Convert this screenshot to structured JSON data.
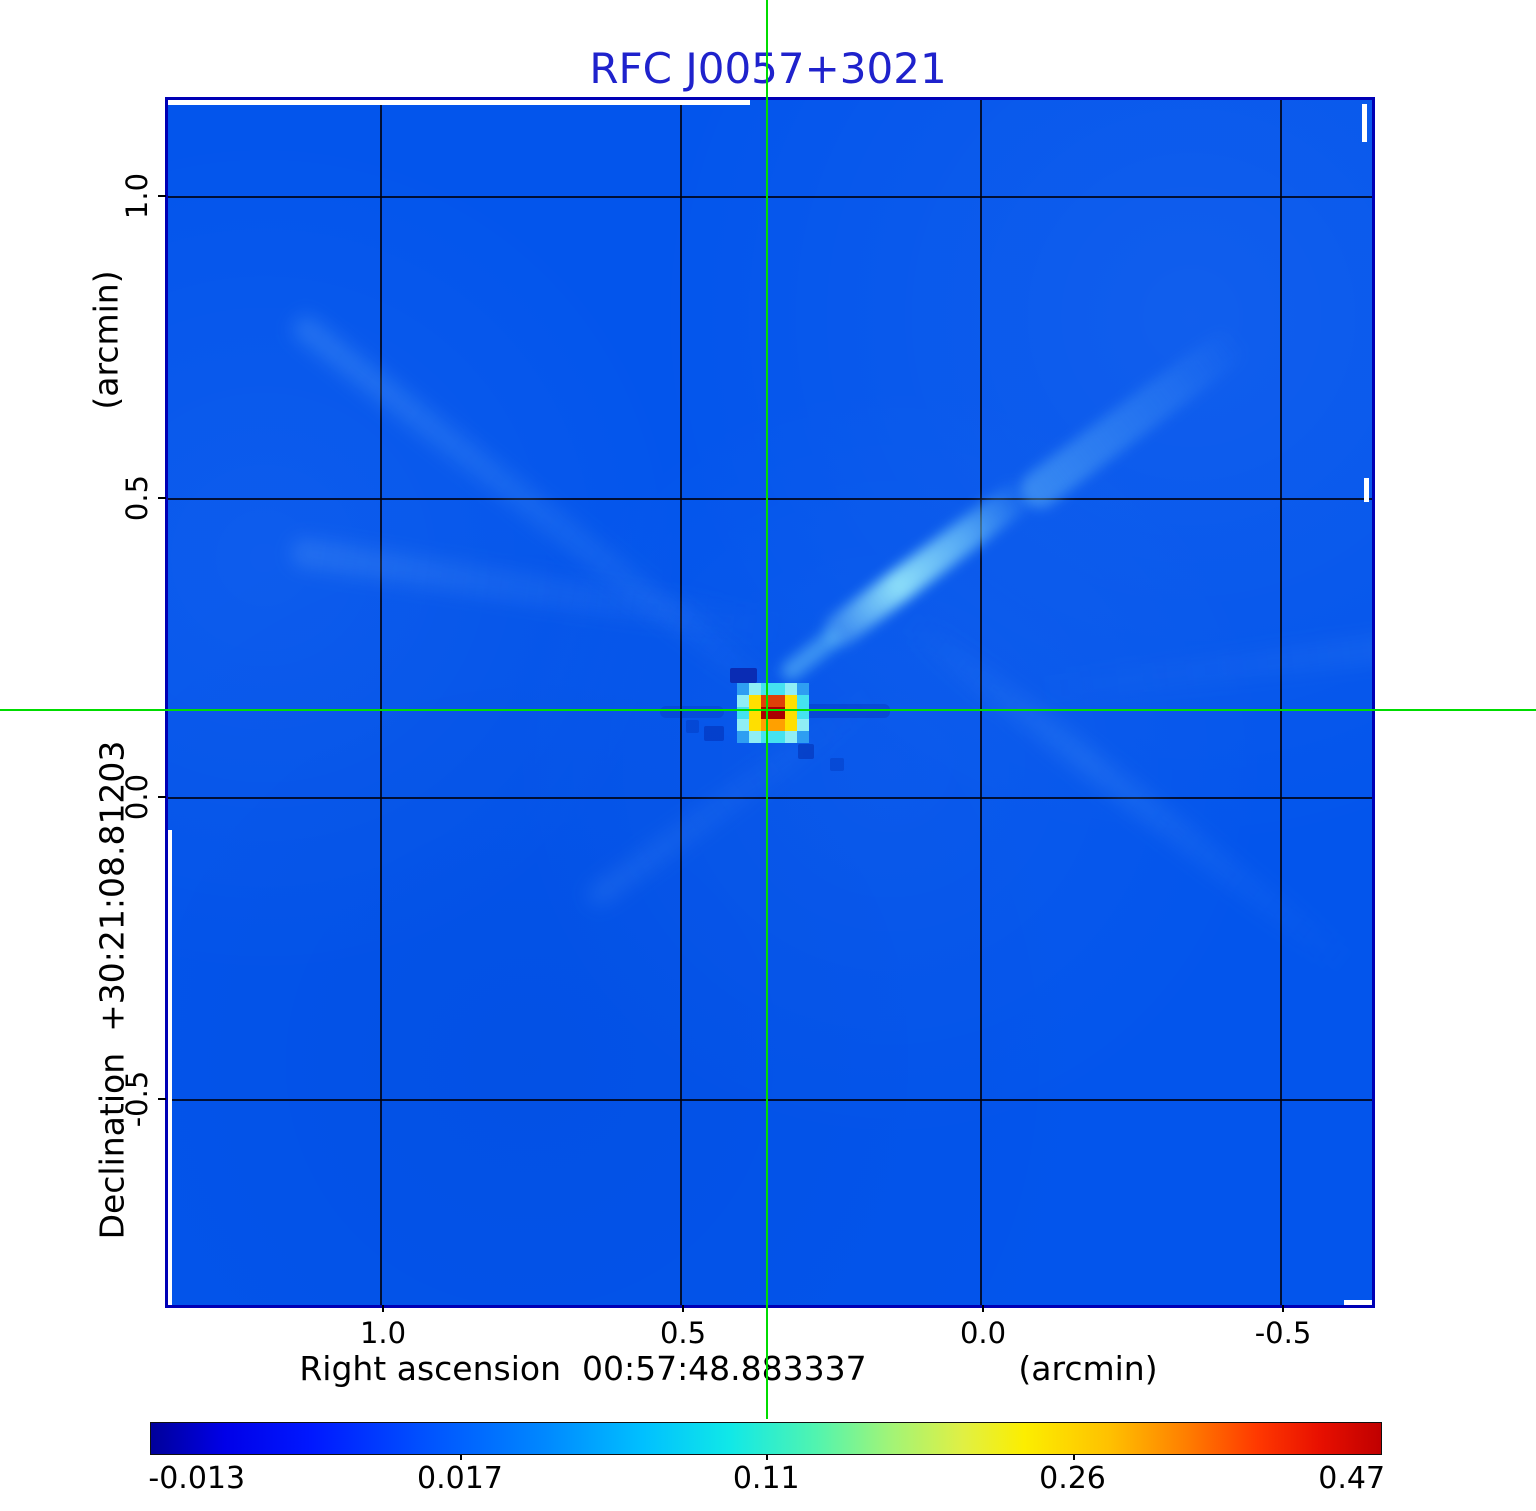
{
  "title": {
    "text": "RFC J0057+3021",
    "color": "#1f22cc"
  },
  "plot": {
    "x_axis": {
      "label": "Right ascension  00:57:48.883337",
      "unit_label": "(arcmin)",
      "ticks": [
        "1.0",
        "0.5",
        "0.0",
        "-0.5"
      ]
    },
    "y_axis": {
      "label": "Declination  +30:21:08.81203",
      "unit_label": "(arcmin)",
      "ticks": [
        "1.0",
        "0.5",
        "0.0",
        "-0.5"
      ]
    },
    "frame_color": "#0000b5",
    "field_color": "#0355ec",
    "grid_color": "#000000",
    "crosshair_color": "#00dc00"
  },
  "colorbar": {
    "tick_labels": [
      "-0.013",
      "0.017",
      "0.11",
      "0.26",
      "0.47"
    ],
    "gradient_stops": [
      "#00009a 0%",
      "#0000e8 6%",
      "#0018ff 13%",
      "#0050ff 22%",
      "#0088ff 32%",
      "#00c0ff 40%",
      "#10e8e8 47%",
      "#50f4b0 54%",
      "#a0f478 60%",
      "#e0f044 66%",
      "#fcee00 71%",
      "#ffc000 78%",
      "#ff8000 84%",
      "#ff3800 90%",
      "#e81000 95%",
      "#c00000 100%"
    ]
  },
  "source_pixels": {
    "palette": {
      "D": "#aa0000",
      "R": "#e04008",
      "O": "#ffa000",
      "Y": "#ffdf00",
      "C": "#45e2f0",
      "c": "#8feef5",
      "l": "#2e9ef2",
      ".": null
    },
    "matrix": [
      [
        "l",
        "c",
        "C",
        "C",
        "c",
        "l"
      ],
      [
        "c",
        "Y",
        "R",
        "R",
        "Y",
        "C"
      ],
      [
        "C",
        "Y",
        "D",
        "D",
        "Y",
        "C"
      ],
      [
        "c",
        "Y",
        "O",
        "O",
        "Y",
        "c"
      ],
      [
        "l",
        "c",
        "C",
        "C",
        "c",
        "l"
      ]
    ]
  },
  "chart_data": {
    "type": "heatmap",
    "title": "RFC J0057+3021",
    "xlabel": "Right ascension 00:57:48.883337 (arcmin)",
    "ylabel": "Declination +30:21:08.81203 (arcmin)",
    "x_ticks_arcmin": [
      1.0,
      0.5,
      0.0,
      -0.5
    ],
    "y_ticks_arcmin": [
      1.0,
      0.5,
      0.0,
      -0.5
    ],
    "x_range_arcmin": [
      1.36,
      -0.65
    ],
    "y_range_arcmin": [
      -0.85,
      1.16
    ],
    "colorbar_ticks": [
      -0.013,
      0.017,
      0.11,
      0.26,
      0.47
    ],
    "colorbar_scale": "nonlinear",
    "grid": true,
    "peak_source": {
      "x_offset_arcmin": 0.36,
      "y_offset_arcmin": 0.15,
      "peak_value": 0.47
    },
    "features": [
      "compact bright point source at crosshair intersection",
      "faint jet-like cyan extension toward upper right",
      "dark negative sidelobe spots adjacent to source",
      "faint radial sidelobe rays across blue background field"
    ]
  }
}
